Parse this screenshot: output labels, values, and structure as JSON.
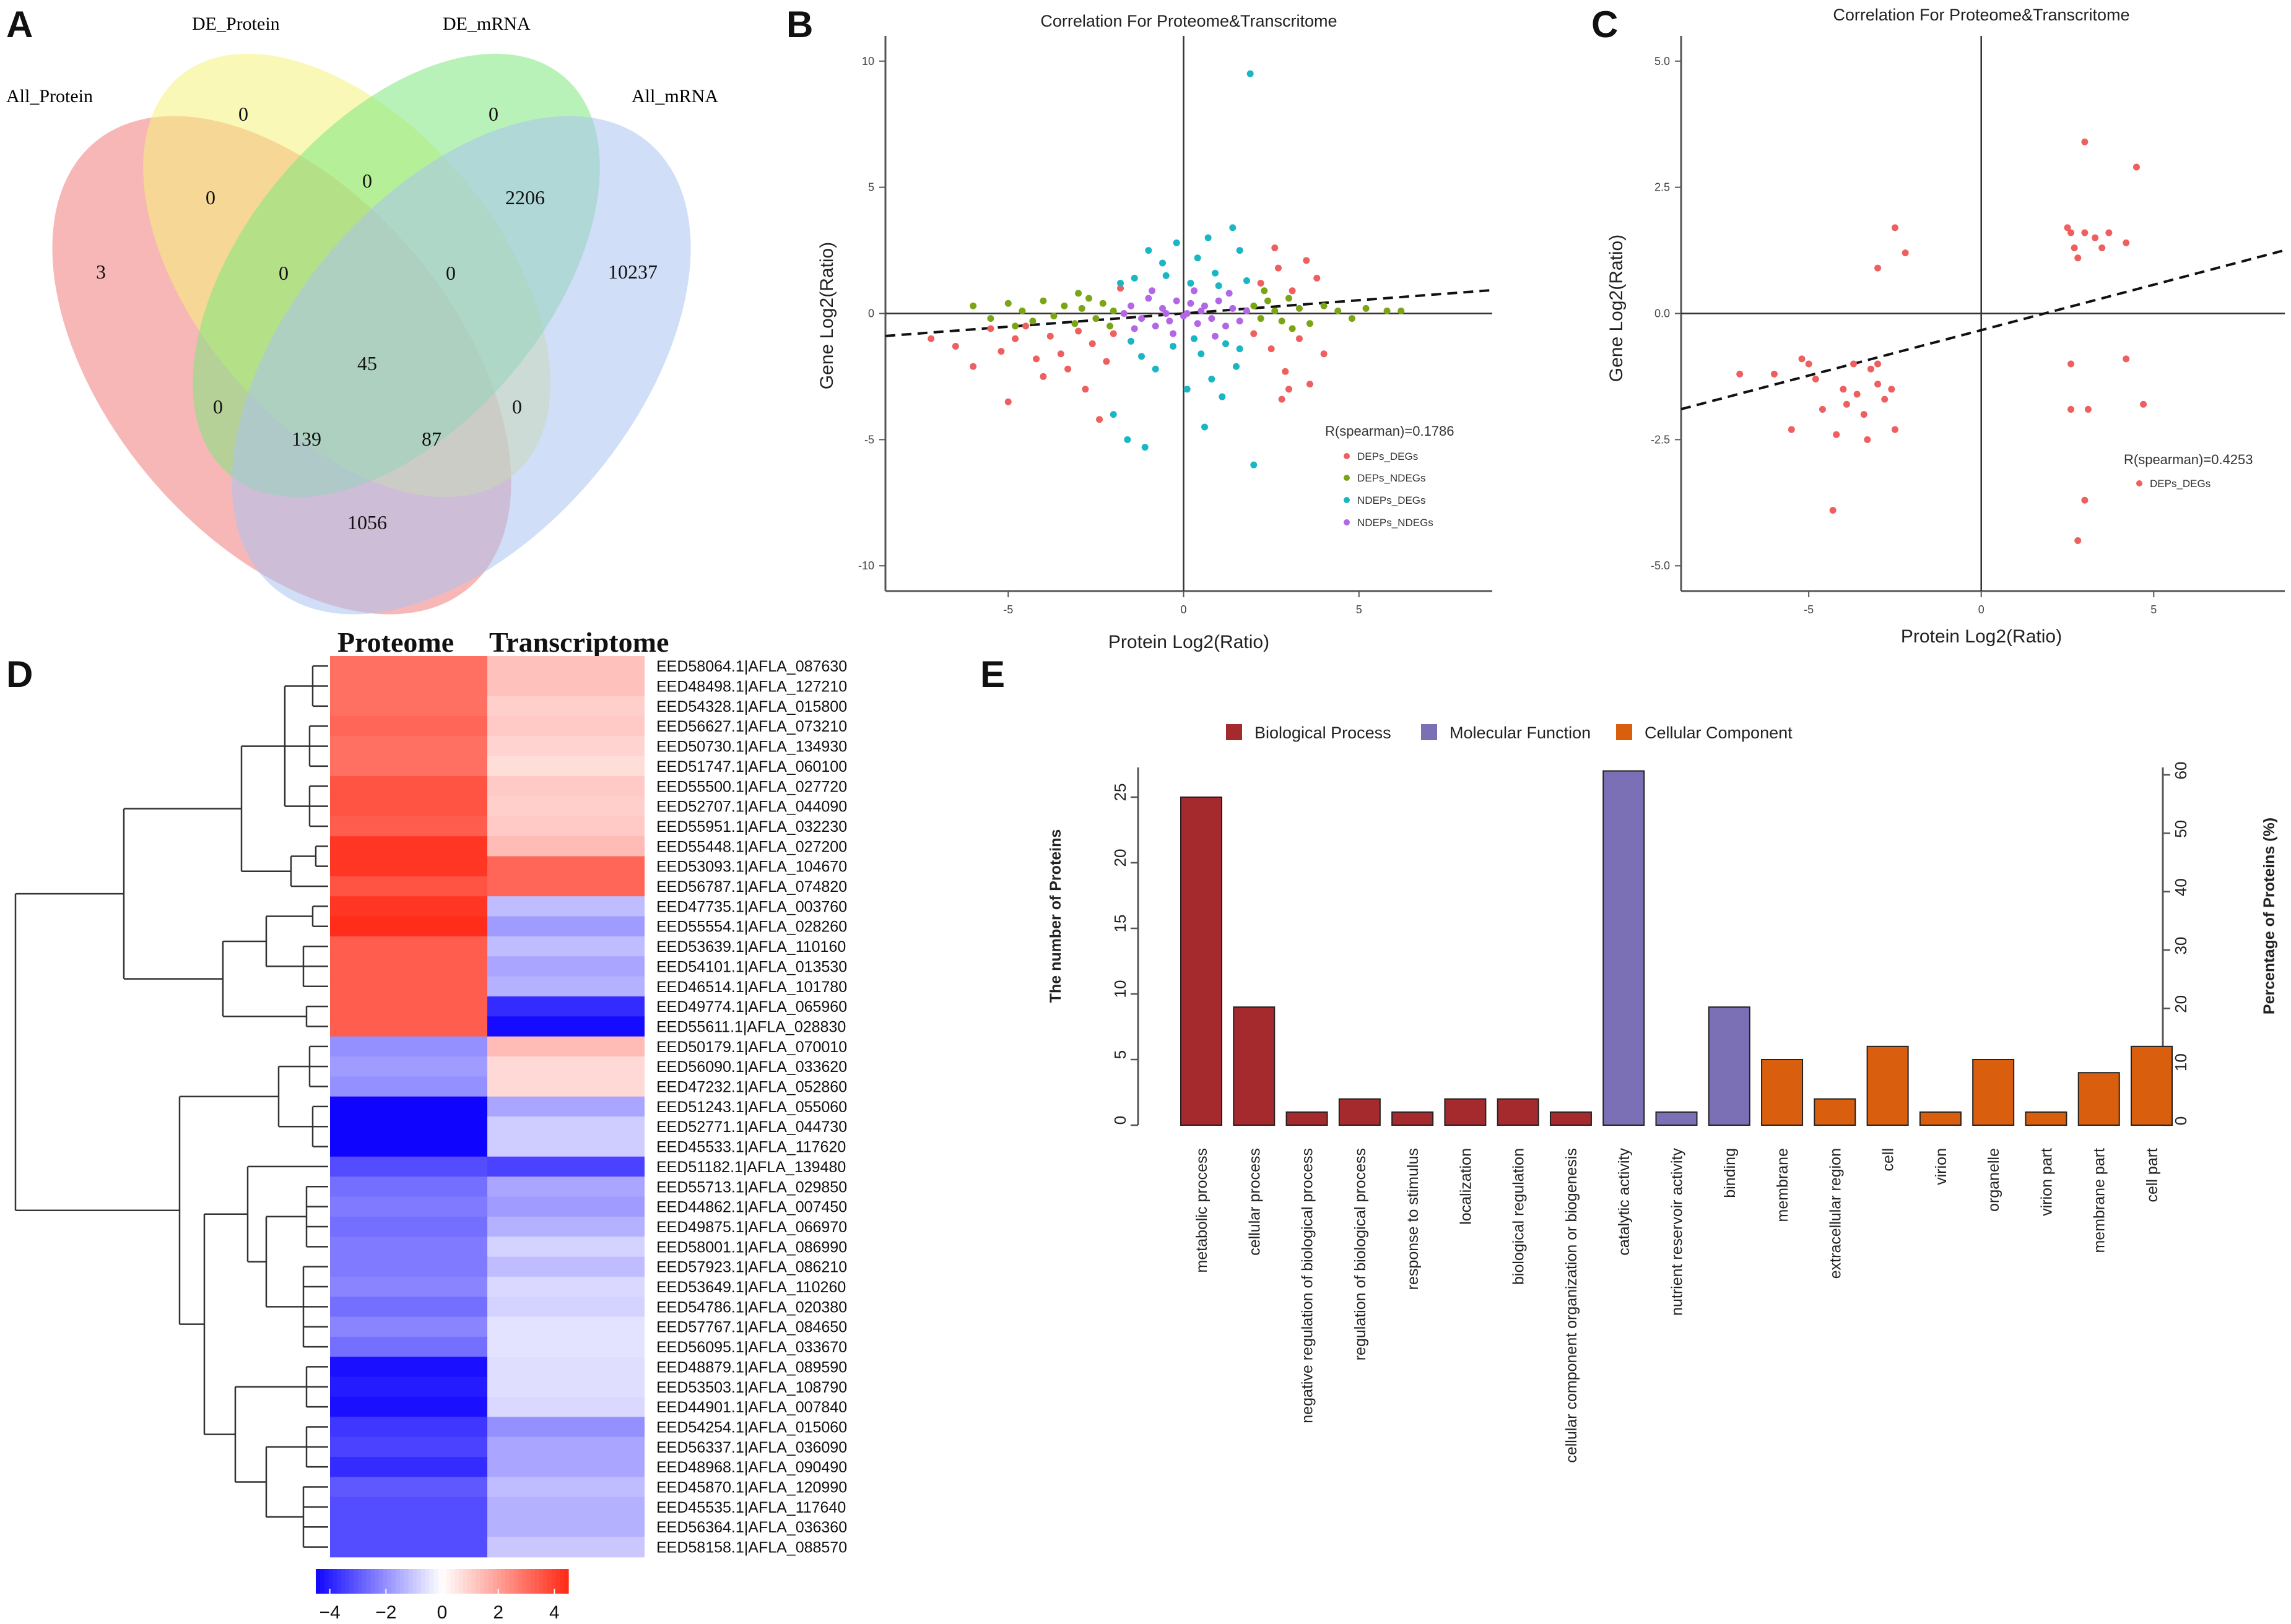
{
  "panels": {
    "a": "A",
    "b": "B",
    "c": "C",
    "d": "D",
    "e": "E"
  },
  "venn": {
    "sets": [
      "All_Protein",
      "DE_Protein",
      "DE_mRNA",
      "All_mRNA"
    ],
    "colors": [
      "#f27b7b",
      "#f4f27a",
      "#7de87d",
      "#a9c3f0"
    ],
    "counts": [
      "3",
      "0",
      "0",
      "10237",
      "0",
      "2206",
      "0",
      "0",
      "45",
      "0",
      "0",
      "139",
      "87",
      "1056",
      "0"
    ]
  },
  "chart_data": [
    {
      "id": "B",
      "type": "scatter",
      "title": "Correlation For Proteome&Transcritome",
      "xlabel": "Protein Log2(Ratio)",
      "ylabel": "Gene Log2(Ratio)",
      "xlim": [
        -8.5,
        8.8
      ],
      "ylim": [
        -11,
        11
      ],
      "xticks": [
        -5,
        0,
        5
      ],
      "yticks": [
        10,
        5,
        0,
        -5,
        -10
      ],
      "annotation": "R(spearman)=0.1786",
      "trend": {
        "slope": 0.105,
        "intercept": 0.0
      },
      "series": [
        {
          "name": "DEPs_DEGs",
          "color": "#ee6060",
          "points": [
            [
              -7.2,
              -1.0
            ],
            [
              -6.5,
              -1.3
            ],
            [
              -6.0,
              -2.1
            ],
            [
              -5.5,
              -0.6
            ],
            [
              -5.2,
              -1.5
            ],
            [
              -5.0,
              -3.5
            ],
            [
              -4.8,
              -1.0
            ],
            [
              -4.5,
              -0.5
            ],
            [
              -4.2,
              -1.8
            ],
            [
              -4.0,
              -2.5
            ],
            [
              -3.8,
              -0.9
            ],
            [
              -3.5,
              -1.6
            ],
            [
              -3.3,
              -2.2
            ],
            [
              -3.0,
              -0.7
            ],
            [
              -2.8,
              -3.0
            ],
            [
              -2.6,
              -1.2
            ],
            [
              -2.4,
              -4.2
            ],
            [
              -2.2,
              -1.9
            ],
            [
              -2.0,
              -0.8
            ],
            [
              -1.8,
              1.0
            ],
            [
              2.0,
              -0.8
            ],
            [
              2.2,
              1.2
            ],
            [
              2.5,
              -1.4
            ],
            [
              2.7,
              1.8
            ],
            [
              2.9,
              -2.3
            ],
            [
              3.1,
              0.9
            ],
            [
              3.3,
              -1.0
            ],
            [
              3.5,
              2.1
            ],
            [
              3.6,
              -2.8
            ],
            [
              3.8,
              1.4
            ],
            [
              4.0,
              -1.6
            ],
            [
              2.6,
              2.6
            ],
            [
              3.0,
              -3.0
            ],
            [
              2.8,
              -3.4
            ]
          ]
        },
        {
          "name": "DEPs_NDEGs",
          "color": "#7aa616",
          "points": [
            [
              -6.0,
              0.3
            ],
            [
              -5.5,
              -0.2
            ],
            [
              -5.0,
              0.4
            ],
            [
              -4.6,
              0.1
            ],
            [
              -4.3,
              -0.3
            ],
            [
              -4.0,
              0.5
            ],
            [
              -3.7,
              -0.1
            ],
            [
              -3.4,
              0.3
            ],
            [
              -3.1,
              -0.4
            ],
            [
              -2.9,
              0.2
            ],
            [
              -2.7,
              0.6
            ],
            [
              -2.5,
              -0.2
            ],
            [
              -2.3,
              0.4
            ],
            [
              -2.1,
              -0.5
            ],
            [
              -2.0,
              0.1
            ],
            [
              -3.0,
              0.8
            ],
            [
              -4.8,
              -0.5
            ],
            [
              2.0,
              0.3
            ],
            [
              2.2,
              -0.2
            ],
            [
              2.4,
              0.5
            ],
            [
              2.6,
              0.1
            ],
            [
              2.8,
              -0.3
            ],
            [
              3.0,
              0.6
            ],
            [
              3.3,
              0.2
            ],
            [
              3.6,
              -0.4
            ],
            [
              4.0,
              0.3
            ],
            [
              4.4,
              0.1
            ],
            [
              4.8,
              -0.2
            ],
            [
              5.2,
              0.2
            ],
            [
              5.8,
              0.1
            ],
            [
              6.2,
              0.1
            ],
            [
              2.3,
              0.9
            ],
            [
              3.1,
              -0.6
            ]
          ]
        },
        {
          "name": "NDEPs_DEGs",
          "color": "#1ab6c4",
          "points": [
            [
              1.9,
              9.5
            ],
            [
              1.4,
              3.4
            ],
            [
              -1.0,
              2.5
            ],
            [
              -0.6,
              2.0
            ],
            [
              0.4,
              2.2
            ],
            [
              0.9,
              1.6
            ],
            [
              1.6,
              2.5
            ],
            [
              -1.4,
              1.4
            ],
            [
              0.2,
              1.2
            ],
            [
              -0.3,
              -1.3
            ],
            [
              0.5,
              -1.6
            ],
            [
              -0.8,
              -2.2
            ],
            [
              0.8,
              -2.6
            ],
            [
              1.2,
              -1.2
            ],
            [
              -1.2,
              -1.7
            ],
            [
              -2.0,
              -4.0
            ],
            [
              -1.6,
              -5.0
            ],
            [
              -1.1,
              -5.3
            ],
            [
              0.1,
              -3.0
            ],
            [
              0.6,
              -4.5
            ],
            [
              1.1,
              -3.3
            ],
            [
              2.0,
              -6.0
            ],
            [
              1.5,
              -2.1
            ],
            [
              -0.5,
              1.5
            ],
            [
              1.0,
              1.1
            ],
            [
              -1.8,
              1.2
            ],
            [
              0.3,
              -1.0
            ],
            [
              1.8,
              1.3
            ],
            [
              -0.2,
              2.8
            ],
            [
              0.7,
              3.0
            ],
            [
              -1.5,
              -1.1
            ],
            [
              1.6,
              -1.4
            ]
          ]
        },
        {
          "name": "NDEPs_NDEGs",
          "color": "#b267e6",
          "points": [
            [
              -1.5,
              0.3
            ],
            [
              -1.2,
              -0.2
            ],
            [
              -1.0,
              0.6
            ],
            [
              -0.8,
              -0.5
            ],
            [
              -0.6,
              0.2
            ],
            [
              -0.4,
              -0.3
            ],
            [
              -0.2,
              0.5
            ],
            [
              0.0,
              -0.1
            ],
            [
              0.2,
              0.4
            ],
            [
              0.4,
              -0.4
            ],
            [
              0.6,
              0.3
            ],
            [
              0.8,
              -0.2
            ],
            [
              1.0,
              0.5
            ],
            [
              1.2,
              -0.5
            ],
            [
              1.4,
              0.2
            ],
            [
              1.6,
              -0.3
            ],
            [
              -1.4,
              -0.6
            ],
            [
              -0.9,
              0.9
            ],
            [
              0.3,
              0.9
            ],
            [
              0.9,
              -0.9
            ],
            [
              -0.3,
              -0.8
            ],
            [
              1.3,
              0.8
            ],
            [
              -1.7,
              0.0
            ],
            [
              1.8,
              0.1
            ],
            [
              0.1,
              0.0
            ],
            [
              -0.5,
              0.0
            ],
            [
              0.5,
              0.1
            ]
          ]
        }
      ]
    },
    {
      "id": "C",
      "type": "scatter",
      "title": "Correlation For Proteome&Transcritome",
      "xlabel": "Protein Log2(Ratio)",
      "ylabel": "Gene Log2(Ratio)",
      "xlim": [
        -8.7,
        8.8
      ],
      "ylim": [
        -5.5,
        5.5
      ],
      "xticks": [
        -5,
        0,
        5
      ],
      "yticks": [
        "5.0",
        "2.5",
        "0.0",
        "-2.5",
        "-5.0"
      ],
      "annotation": "R(spearman)=0.4253",
      "trend": {
        "slope": 0.18,
        "intercept": -0.33
      },
      "series": [
        {
          "name": "DEPs_DEGs",
          "color": "#ee6060",
          "points": [
            [
              -7.0,
              -1.2
            ],
            [
              -6.0,
              -1.2
            ],
            [
              -5.5,
              -2.3
            ],
            [
              -5.0,
              -1.0
            ],
            [
              -4.8,
              -1.3
            ],
            [
              -4.6,
              -1.9
            ],
            [
              -4.3,
              -3.9
            ],
            [
              -4.2,
              -2.4
            ],
            [
              -4.0,
              -1.5
            ],
            [
              -3.9,
              -1.8
            ],
            [
              -3.6,
              -1.6
            ],
            [
              -3.4,
              -2.0
            ],
            [
              -3.3,
              -2.5
            ],
            [
              -3.2,
              -1.1
            ],
            [
              -3.0,
              -1.0
            ],
            [
              -3.0,
              -1.4
            ],
            [
              -2.8,
              -1.7
            ],
            [
              -2.6,
              -1.5
            ],
            [
              -2.5,
              -2.3
            ],
            [
              -2.5,
              1.7
            ],
            [
              -2.2,
              1.2
            ],
            [
              -3.0,
              0.9
            ],
            [
              -3.7,
              -1.0
            ],
            [
              -5.2,
              -0.9
            ],
            [
              2.5,
              1.7
            ],
            [
              2.6,
              1.6
            ],
            [
              2.7,
              1.3
            ],
            [
              2.8,
              1.1
            ],
            [
              3.0,
              1.6
            ],
            [
              3.3,
              1.5
            ],
            [
              3.5,
              1.3
            ],
            [
              3.7,
              1.6
            ],
            [
              4.2,
              1.4
            ],
            [
              3.0,
              3.4
            ],
            [
              4.5,
              2.9
            ],
            [
              2.6,
              -1.9
            ],
            [
              3.1,
              -1.9
            ],
            [
              4.2,
              -0.9
            ],
            [
              4.7,
              -1.8
            ],
            [
              2.8,
              -4.5
            ],
            [
              3.0,
              -3.7
            ],
            [
              2.6,
              -1.0
            ]
          ]
        }
      ]
    },
    {
      "id": "D",
      "type": "heatmap",
      "title_left": "Proteome",
      "title_right": "Transcriptome",
      "legend_ticks": [
        "-4",
        "-2",
        "0",
        "2",
        "4"
      ],
      "color_range": [
        -4.5,
        4.5
      ],
      "rows": [
        "EED58064.1|AFLA_087630",
        "EED48498.1|AFLA_127210",
        "EED54328.1|AFLA_015800",
        "EED56627.1|AFLA_073210",
        "EED50730.1|AFLA_134930",
        "EED51747.1|AFLA_060100",
        "EED55500.1|AFLA_027720",
        "EED52707.1|AFLA_044090",
        "EED55951.1|AFLA_032230",
        "EED55448.1|AFLA_027200",
        "EED53093.1|AFLA_104670",
        "EED56787.1|AFLA_074820",
        "EED47735.1|AFLA_003760",
        "EED55554.1|AFLA_028260",
        "EED53639.1|AFLA_110160",
        "EED54101.1|AFLA_013530",
        "EED46514.1|AFLA_101780",
        "EED49774.1|AFLA_065960",
        "EED55611.1|AFLA_028830",
        "EED50179.1|AFLA_070010",
        "EED56090.1|AFLA_033620",
        "EED47232.1|AFLA_052860",
        "EED51243.1|AFLA_055060",
        "EED52771.1|AFLA_044730",
        "EED45533.1|AFLA_117620",
        "EED51182.1|AFLA_139480",
        "EED55713.1|AFLA_029850",
        "EED44862.1|AFLA_007450",
        "EED49875.1|AFLA_066970",
        "EED58001.1|AFLA_086990",
        "EED57923.1|AFLA_086210",
        "EED53649.1|AFLA_110260",
        "EED54786.1|AFLA_020380",
        "EED57767.1|AFLA_084650",
        "EED56095.1|AFLA_033670",
        "EED48879.1|AFLA_089590",
        "EED53503.1|AFLA_108790",
        "EED44901.1|AFLA_007840",
        "EED54254.1|AFLA_015060",
        "EED56337.1|AFLA_036090",
        "EED48968.1|AFLA_090490",
        "EED45870.1|AFLA_120990",
        "EED45535.1|AFLA_117640",
        "EED56364.1|AFLA_036360",
        "EED58158.1|AFLA_088570"
      ],
      "proteome": [
        3.0,
        3.0,
        3.0,
        3.2,
        3.0,
        3.0,
        3.6,
        3.6,
        3.4,
        4.2,
        4.2,
        3.6,
        4.2,
        4.4,
        3.4,
        3.4,
        3.4,
        3.4,
        3.4,
        -2.0,
        -1.8,
        -2.0,
        -4.5,
        -4.5,
        -4.5,
        -3.2,
        -2.6,
        -2.4,
        -2.6,
        -2.4,
        -2.4,
        -2.2,
        -2.6,
        -2.2,
        -2.6,
        -4.3,
        -4.1,
        -4.3,
        -3.6,
        -3.4,
        -3.8,
        -3.0,
        -3.2,
        -3.2,
        -3.2
      ],
      "transcriptome": [
        1.3,
        1.3,
        1.0,
        1.1,
        0.9,
        0.7,
        1.1,
        1.0,
        1.1,
        1.4,
        3.2,
        3.2,
        -1.2,
        -1.8,
        -1.2,
        -1.6,
        -1.4,
        -3.8,
        -4.4,
        1.4,
        0.8,
        0.8,
        -1.6,
        -0.9,
        -0.9,
        -3.4,
        -1.6,
        -1.8,
        -1.4,
        -0.8,
        -1.2,
        -0.7,
        -0.8,
        -0.5,
        -0.5,
        -0.6,
        -0.6,
        -0.7,
        -2.0,
        -1.6,
        -1.6,
        -1.2,
        -1.4,
        -1.4,
        -1.0
      ]
    },
    {
      "id": "E",
      "type": "bar",
      "ylabel": "The number of Proteins",
      "y2label": "Percentage of Proteins (%)",
      "ylim": [
        0,
        27
      ],
      "yticks": [
        0,
        5,
        10,
        15,
        20,
        25
      ],
      "y2ticks": [
        0,
        10,
        20,
        30,
        40,
        50,
        60
      ],
      "legend": [
        {
          "name": "Biological Process",
          "color": "#a52a2d"
        },
        {
          "name": "Molecular Function",
          "color": "#7b70b6"
        },
        {
          "name": "Cellular Component",
          "color": "#d95f0e"
        }
      ],
      "categories": [
        "metabolic process",
        "cellular process",
        "negative regulation of biological process",
        "regulation of biological process",
        "response to stimulus",
        "localization",
        "biological regulation",
        "cellular component organization or biogenesis",
        "catalytic activity",
        "nutrient reservoir activity",
        "binding",
        "membrane",
        "extracellular region",
        "cell",
        "virion",
        "organelle",
        "virion part",
        "membrane part",
        "cell part"
      ],
      "groups": [
        0,
        0,
        0,
        0,
        0,
        0,
        0,
        0,
        1,
        1,
        1,
        2,
        2,
        2,
        2,
        2,
        2,
        2,
        2
      ],
      "values": [
        25,
        9,
        1,
        2,
        1,
        2,
        2,
        1,
        27,
        1,
        9,
        5,
        2,
        6,
        1,
        5,
        1,
        4,
        6
      ]
    }
  ]
}
